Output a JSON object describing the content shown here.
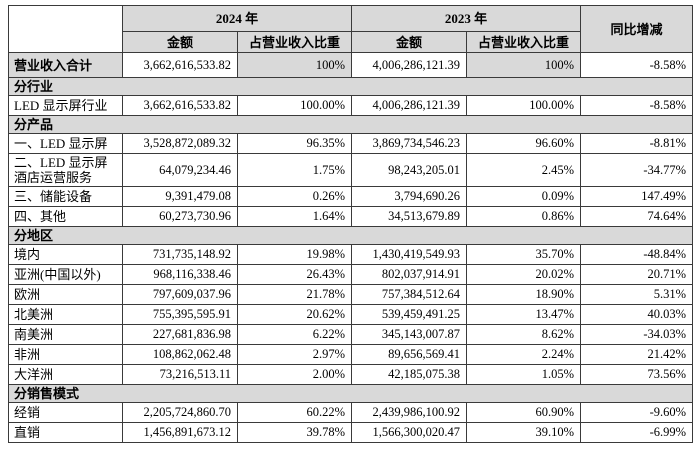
{
  "colors": {
    "shaded_cell": "#d9d9d9",
    "border": "#3a3a3a",
    "text": "#000000"
  },
  "table": {
    "header": {
      "year2024": "2024 年",
      "year2023": "2023 年",
      "amount2024": "金额",
      "ratio2024": "占营业收入比重",
      "amount2023": "金额",
      "ratio2023": "占营业收入比重",
      "yoy": "同比增减"
    },
    "rows": [
      {
        "type": "data",
        "label": "营业收入合计",
        "amt2024": "3,662,616,533.82",
        "pct2024": "100%",
        "amt2023": "4,006,286,121.39",
        "pct2023": "100%",
        "yoy": "-8.58%",
        "shaded": [
          0,
          2,
          4
        ],
        "bold": true,
        "first": true
      },
      {
        "type": "section",
        "label": "分行业"
      },
      {
        "type": "data",
        "label": "LED 显示屏行业",
        "amt2024": "3,662,616,533.82",
        "pct2024": "100.00%",
        "amt2023": "4,006,286,121.39",
        "pct2023": "100.00%",
        "yoy": "-8.58%"
      },
      {
        "type": "section",
        "label": "分产品"
      },
      {
        "type": "data",
        "label": "一、LED 显示屏",
        "amt2024": "3,528,872,089.32",
        "pct2024": "96.35%",
        "amt2023": "3,869,734,546.23",
        "pct2023": "96.60%",
        "yoy": "-8.81%"
      },
      {
        "type": "data",
        "label": "二、LED 显示屏酒店运营服务",
        "amt2024": "64,079,234.46",
        "pct2024": "1.75%",
        "amt2023": "98,243,205.01",
        "pct2023": "2.45%",
        "yoy": "-34.77%"
      },
      {
        "type": "data",
        "label": "三、储能设备",
        "amt2024": "9,391,479.08",
        "pct2024": "0.26%",
        "amt2023": "3,794,690.26",
        "pct2023": "0.09%",
        "yoy": "147.49%"
      },
      {
        "type": "data",
        "label": "四、其他",
        "amt2024": "60,273,730.96",
        "pct2024": "1.64%",
        "amt2023": "34,513,679.89",
        "pct2023": "0.86%",
        "yoy": "74.64%"
      },
      {
        "type": "section",
        "label": "分地区"
      },
      {
        "type": "data",
        "label": "境内",
        "amt2024": "731,735,148.92",
        "pct2024": "19.98%",
        "amt2023": "1,430,419,549.93",
        "pct2023": "35.70%",
        "yoy": "-48.84%"
      },
      {
        "type": "data",
        "label": "亚洲(中国以外)",
        "amt2024": "968,116,338.46",
        "pct2024": "26.43%",
        "amt2023": "802,037,914.91",
        "pct2023": "20.02%",
        "yoy": "20.71%"
      },
      {
        "type": "data",
        "label": "欧洲",
        "amt2024": "797,609,037.96",
        "pct2024": "21.78%",
        "amt2023": "757,384,512.64",
        "pct2023": "18.90%",
        "yoy": "5.31%"
      },
      {
        "type": "data",
        "label": "北美洲",
        "amt2024": "755,395,595.91",
        "pct2024": "20.62%",
        "amt2023": "539,459,491.25",
        "pct2023": "13.47%",
        "yoy": "40.03%"
      },
      {
        "type": "data",
        "label": "南美洲",
        "amt2024": "227,681,836.98",
        "pct2024": "6.22%",
        "amt2023": "345,143,007.87",
        "pct2023": "8.62%",
        "yoy": "-34.03%"
      },
      {
        "type": "data",
        "label": "非洲",
        "amt2024": "108,862,062.48",
        "pct2024": "2.97%",
        "amt2023": "89,656,569.41",
        "pct2023": "2.24%",
        "yoy": "21.42%"
      },
      {
        "type": "data",
        "label": "大洋洲",
        "amt2024": "73,216,513.11",
        "pct2024": "2.00%",
        "amt2023": "42,185,075.38",
        "pct2023": "1.05%",
        "yoy": "73.56%"
      },
      {
        "type": "section",
        "label": "分销售模式"
      },
      {
        "type": "data",
        "label": "经销",
        "amt2024": "2,205,724,860.70",
        "pct2024": "60.22%",
        "amt2023": "2,439,986,100.92",
        "pct2023": "60.90%",
        "yoy": "-9.60%"
      },
      {
        "type": "data",
        "label": "直销",
        "amt2024": "1,456,891,673.12",
        "pct2024": "39.78%",
        "amt2023": "1,566,300,020.47",
        "pct2023": "39.10%",
        "yoy": "-6.99%"
      }
    ]
  }
}
